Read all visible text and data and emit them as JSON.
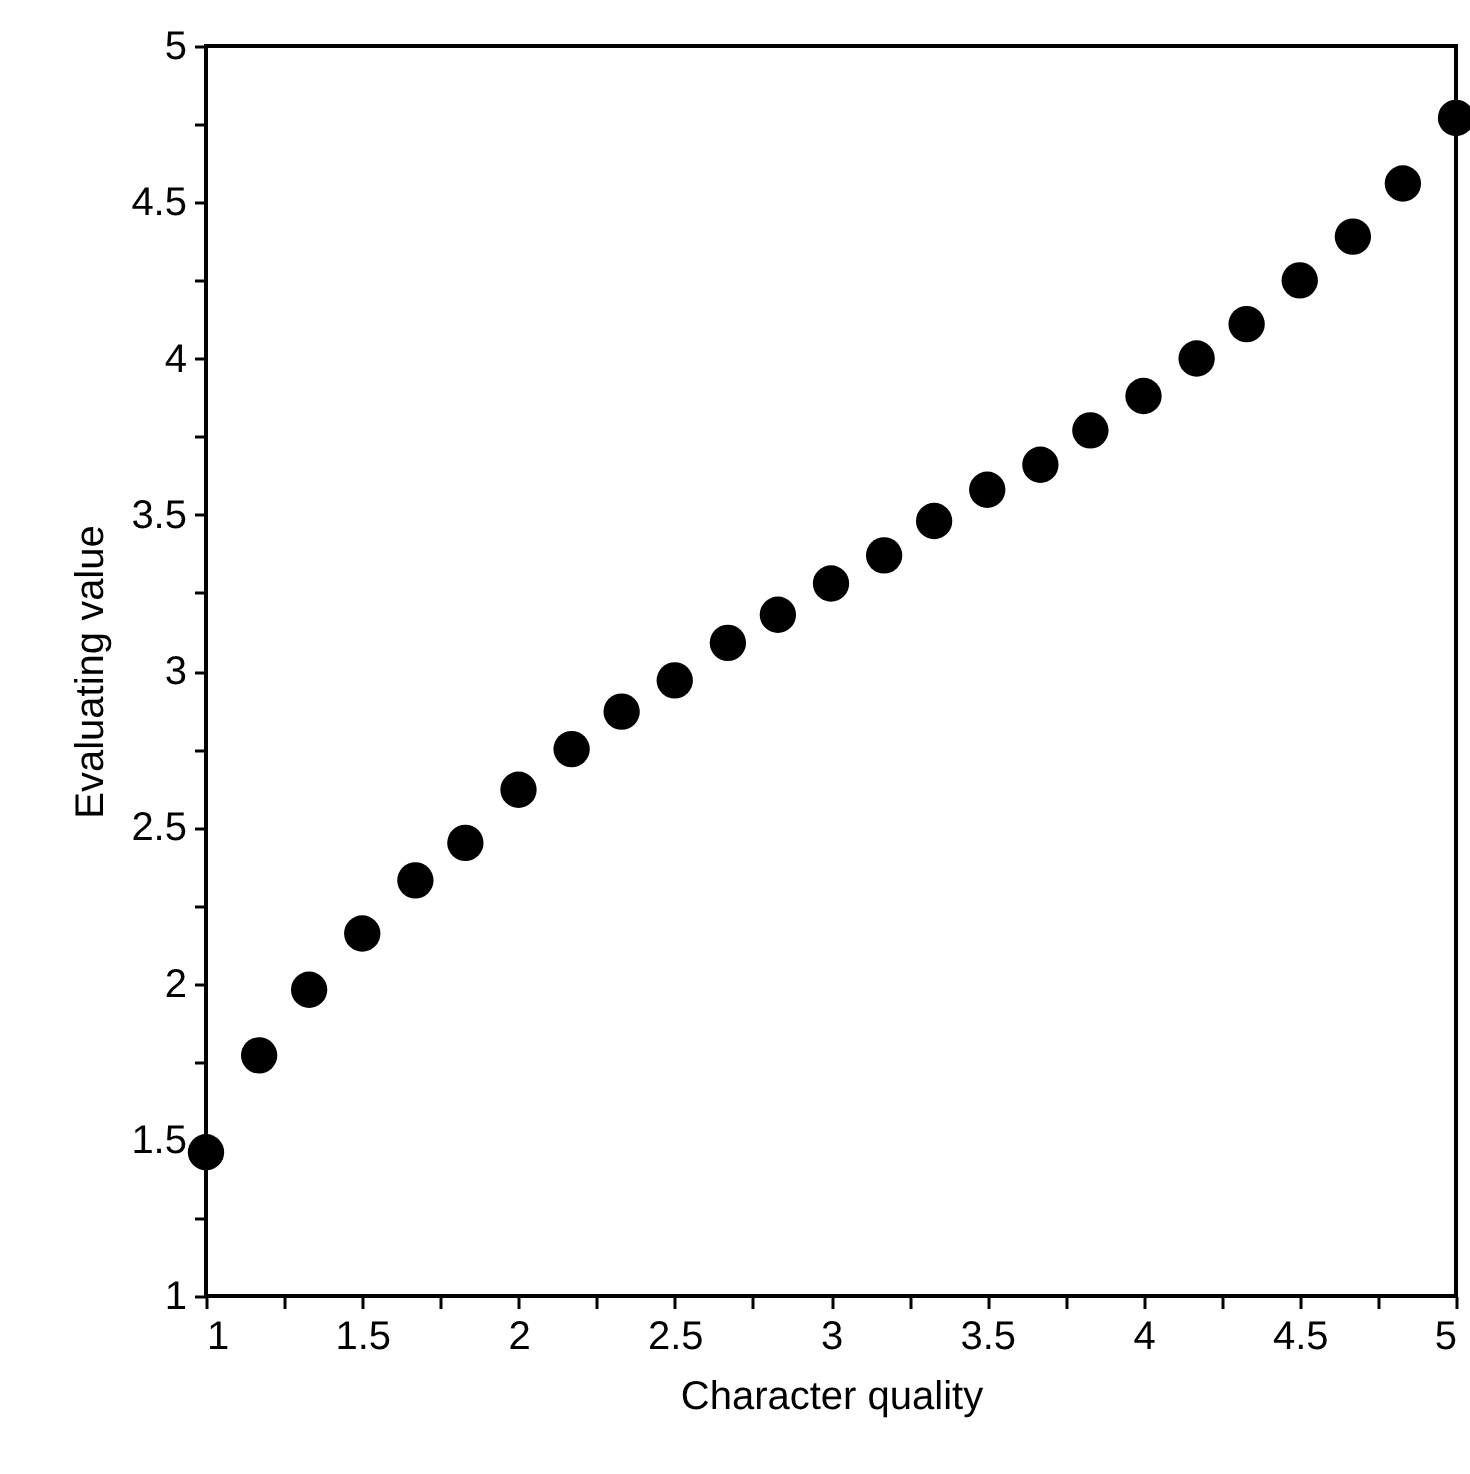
{
  "chart_data": {
    "type": "scatter",
    "xlabel": "Character quality",
    "ylabel": "Evaluating value",
    "x": [
      1,
      1.17,
      1.33,
      1.5,
      1.67,
      1.83,
      2,
      2.17,
      2.33,
      2.5,
      2.67,
      2.83,
      3,
      3.17,
      3.33,
      3.5,
      3.67,
      3.83,
      4,
      4.17,
      4.33,
      4.5,
      4.67,
      4.83,
      5
    ],
    "series": [
      {
        "color": "#000000",
        "values": [
          1.46,
          1.77,
          1.98,
          2.16,
          2.33,
          2.45,
          2.62,
          2.75,
          2.87,
          2.97,
          3.09,
          3.18,
          3.28,
          3.37,
          3.48,
          3.58,
          3.66,
          3.77,
          3.88,
          4.0,
          4.11,
          4.25,
          4.39,
          4.56,
          4.77
        ]
      }
    ],
    "marker": "circle",
    "xlim": [
      1,
      5
    ],
    "ylim": [
      1,
      5
    ],
    "xticks": [
      1,
      {
        "value": 1.25,
        "label": null
      },
      1.5,
      {
        "value": 1.75,
        "label": null
      },
      2,
      {
        "value": 2.25,
        "label": null
      },
      2.5,
      {
        "value": 2.75,
        "label": null
      },
      3,
      {
        "value": 3.25,
        "label": null
      },
      3.5,
      {
        "value": 3.75,
        "label": null
      },
      4,
      {
        "value": 4.25,
        "label": null
      },
      4.5,
      {
        "value": 4.75,
        "label": null
      },
      5
    ],
    "yticks": [
      1,
      {
        "value": 1.25,
        "label": null
      },
      1.5,
      {
        "value": 1.75,
        "label": null
      },
      2,
      {
        "value": 2.25,
        "label": null
      },
      2.5,
      {
        "value": 2.75,
        "label": null
      },
      3,
      {
        "value": 3.25,
        "label": null
      },
      3.5,
      {
        "value": 3.75,
        "label": null
      },
      4,
      {
        "value": 4.25,
        "label": null
      },
      4.5,
      {
        "value": 4.75,
        "label": null
      },
      5
    ],
    "grid": false
  }
}
